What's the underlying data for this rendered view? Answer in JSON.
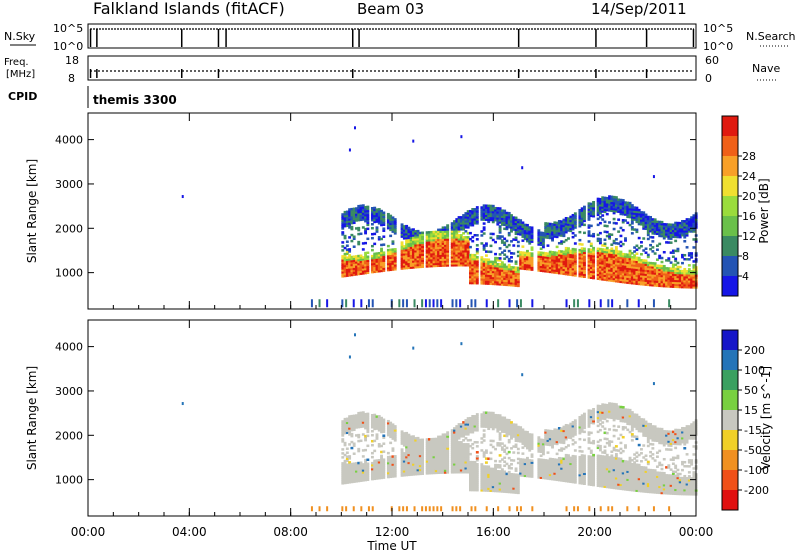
{
  "header": {
    "site": "Falkland Islands (fitACF)",
    "beam": "Beam 03",
    "date": "14/Sep/2011"
  },
  "info_panel": {
    "nsky_label": "N.Sky",
    "nsky_ticks": [
      "10^5",
      "10^0"
    ],
    "nsearch_label": "N.Search",
    "nsearch_ticks": [
      "10^5",
      "10^0"
    ],
    "freq_label_1": "Freq.",
    "freq_label_2": "[MHz]",
    "freq_ticks": [
      "18",
      "8"
    ],
    "nave_label": "Nave",
    "nave_ticks": [
      "60",
      "0"
    ],
    "cpid_label": "CPID",
    "cpid_value": "themis 3300"
  },
  "chart_data": [
    {
      "type": "heatmap",
      "title": "Power",
      "xlabel": "",
      "ylabel": "Slant Range [km]",
      "ylim": [
        180,
        4600
      ],
      "yticks": [
        "1000",
        "2000",
        "3000",
        "4000"
      ],
      "colorbar_label": "Power [dB]",
      "colorbar_range": [
        0,
        32
      ],
      "colorbar_ticks": [
        "4",
        "8",
        "12",
        "16",
        "20",
        "24",
        "28"
      ],
      "colors": [
        "#1616e6",
        "#2454b4",
        "#3a8a62",
        "#6ac04a",
        "#9adc3c",
        "#f0e030",
        "#f8a028",
        "#f06018",
        "#e01a10"
      ],
      "description_values": {
        "main_echo_range_km": [
          900,
          1400
        ],
        "main_echo_time_h": [
          10.0,
          24.0
        ],
        "peak_power_db": 30
      }
    },
    {
      "type": "heatmap",
      "title": "Velocity",
      "xlabel": "Time UT",
      "ylabel": "Slant Range [km]",
      "ylim": [
        180,
        4600
      ],
      "yticks": [
        "1000",
        "2000",
        "3000",
        "4000"
      ],
      "xticks": [
        "00:00",
        "04:00",
        "08:00",
        "12:00",
        "16:00",
        "20:00",
        "00:00"
      ],
      "colorbar_label": "Velocity [m s^-1]",
      "colorbar_ticks": [
        "200",
        "100",
        "50",
        "15",
        "-15",
        "-50",
        "-100",
        "-200"
      ],
      "colors": [
        "#1616c8",
        "#2474b8",
        "#3aa060",
        "#78d040",
        "#c8c8c0",
        "#f0d028",
        "#f09020",
        "#f05018",
        "#e01010"
      ],
      "ground_scatter_color": "#c8c8c0"
    }
  ]
}
